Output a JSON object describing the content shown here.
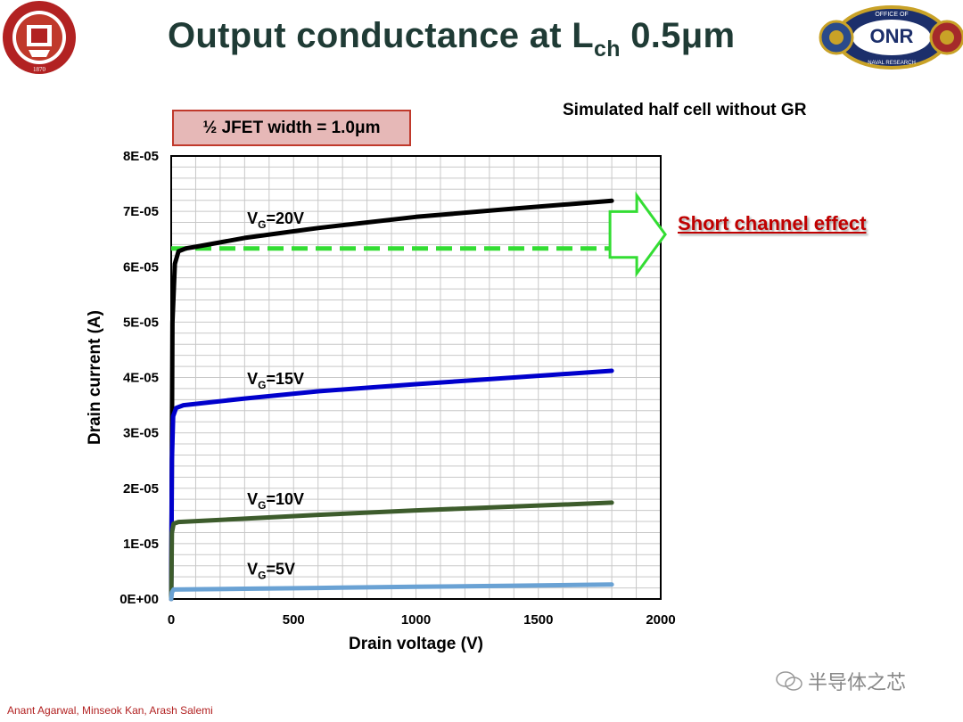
{
  "slide": {
    "title_main": "Output conductance at L",
    "title_sub": "ch",
    "title_tail": " 0.5μm",
    "box_label": "½ JFET width = 1.0μm",
    "sim_label": "Simulated half cell without GR",
    "short_channel_label": "Short channel effect",
    "authors": "Anant Agarwal, Minseok Kan, Arash Salemi",
    "watermark": "半导体之芯",
    "logos": {
      "left": "ohio-state-university-seal",
      "right": "office-of-naval-research-logo",
      "left_text": "OHIO STATE UNIVERSITY",
      "left_year": "1870",
      "right_text_top": "OFFICE OF",
      "right_text_mid": "ONR",
      "right_text_bottom": "NAVAL RESEARCH"
    },
    "colors": {
      "title": "#1f3b35",
      "box_fill": "#e6b8b7",
      "box_border": "#c0392b",
      "short_channel": "#c00000",
      "arrow": "#33dd33"
    }
  },
  "chart_data": {
    "type": "line",
    "xlabel": "Drain voltage (V)",
    "ylabel": "Drain current (A)",
    "xlim": [
      0,
      2000
    ],
    "ylim": [
      0,
      8e-05
    ],
    "x_ticks": [
      0,
      500,
      1000,
      1500,
      2000
    ],
    "x_tick_labels": [
      "0",
      "500",
      "1000",
      "1500",
      "2000"
    ],
    "y_ticks": [
      0,
      1e-05,
      2e-05,
      3e-05,
      4e-05,
      5e-05,
      6e-05,
      7e-05,
      8e-05
    ],
    "y_tick_labels": [
      "0E+00",
      "1E-05",
      "2E-05",
      "3E-05",
      "4E-05",
      "5E-05",
      "6E-05",
      "7E-05",
      "8E-05"
    ],
    "grid": true,
    "series": [
      {
        "name": "VG=20V",
        "label_main": "V",
        "label_sub": "G",
        "label_tail": "=20V",
        "color": "#000000",
        "x": [
          0,
          5,
          15,
          30,
          60,
          100,
          300,
          600,
          1000,
          1400,
          1800
        ],
        "y": [
          0,
          5e-05,
          6.05e-05,
          6.28e-05,
          6.33e-05,
          6.36e-05,
          6.52e-05,
          6.7e-05,
          6.9e-05,
          7.05e-05,
          7.19e-05
        ]
      },
      {
        "name": "VG=15V",
        "label_main": "V",
        "label_sub": "G",
        "label_tail": "=15V",
        "color": "#0000cc",
        "x": [
          0,
          3,
          8,
          20,
          50,
          300,
          600,
          1000,
          1400,
          1800
        ],
        "y": [
          0,
          2.5e-05,
          3.3e-05,
          3.45e-05,
          3.5e-05,
          3.62e-05,
          3.75e-05,
          3.88e-05,
          4e-05,
          4.12e-05
        ]
      },
      {
        "name": "VG=10V",
        "label_main": "V",
        "label_sub": "G",
        "label_tail": "=10V",
        "color": "#3d5c2c",
        "x": [
          0,
          3,
          10,
          30,
          300,
          600,
          1000,
          1400,
          1800
        ],
        "y": [
          0,
          1.2e-05,
          1.36e-05,
          1.39e-05,
          1.45e-05,
          1.52e-05,
          1.6e-05,
          1.67e-05,
          1.74e-05
        ]
      },
      {
        "name": "VG=5V",
        "label_main": "V",
        "label_sub": "G",
        "label_tail": "=5V",
        "color": "#6aa2d4",
        "x": [
          0,
          3,
          10,
          300,
          600,
          1000,
          1400,
          1800
        ],
        "y": [
          0,
          1.2e-06,
          1.7e-06,
          1.85e-06,
          2e-06,
          2.2e-06,
          2.4e-06,
          2.6e-06
        ]
      }
    ],
    "reference_line": {
      "y": 6.33e-05,
      "x_start": 0,
      "x_end": 1800,
      "color": "#33dd33",
      "style": "dashed"
    }
  }
}
